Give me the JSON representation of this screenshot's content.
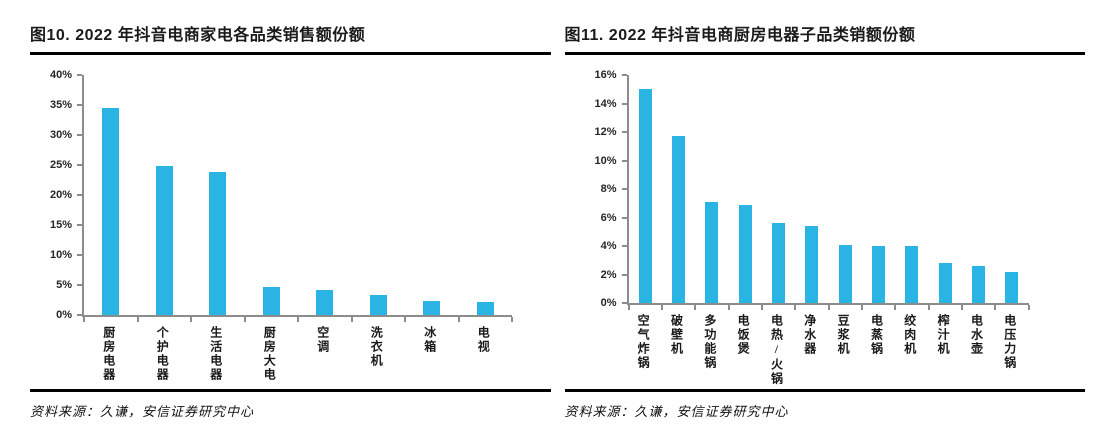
{
  "colors": {
    "bar": "#29B4E3",
    "axis": "#8C8C8C",
    "title_text": "#1A1A1A",
    "rule": "#000000"
  },
  "chart_data": [
    {
      "type": "bar",
      "title": "图10. 2022 年抖音电商家电各品类销售额份额",
      "source": "资料来源：久谦，安信证券研究中心",
      "categories": [
        "厨房电器",
        "个护电器",
        "生活电器",
        "厨房大电",
        "空调",
        "洗衣机",
        "冰箱",
        "电视"
      ],
      "values": [
        34.5,
        24.9,
        23.9,
        4.7,
        4.2,
        3.3,
        2.4,
        2.1
      ],
      "xlabel": "",
      "ylabel": "",
      "ylim": [
        0,
        40
      ],
      "ytick_step": 5,
      "ytick_suffix": "%",
      "grid": false,
      "legend": false
    },
    {
      "type": "bar",
      "title": "图11. 2022 年抖音电商厨房电器子品类销额份额",
      "source": "资料来源：久谦，安信证券研究中心",
      "categories": [
        "空气炸锅",
        "破壁机",
        "多功能锅",
        "电饭煲",
        "电热/火锅",
        "净水器",
        "豆浆机",
        "电蒸锅",
        "绞肉机",
        "榨汁机",
        "电水壶",
        "电压力锅"
      ],
      "values": [
        15.0,
        11.7,
        7.1,
        6.9,
        5.6,
        5.4,
        4.1,
        4.0,
        4.0,
        2.8,
        2.6,
        2.2
      ],
      "xlabel": "",
      "ylabel": "",
      "ylim": [
        0,
        16
      ],
      "ytick_step": 2,
      "ytick_suffix": "%",
      "grid": false,
      "legend": false
    }
  ]
}
